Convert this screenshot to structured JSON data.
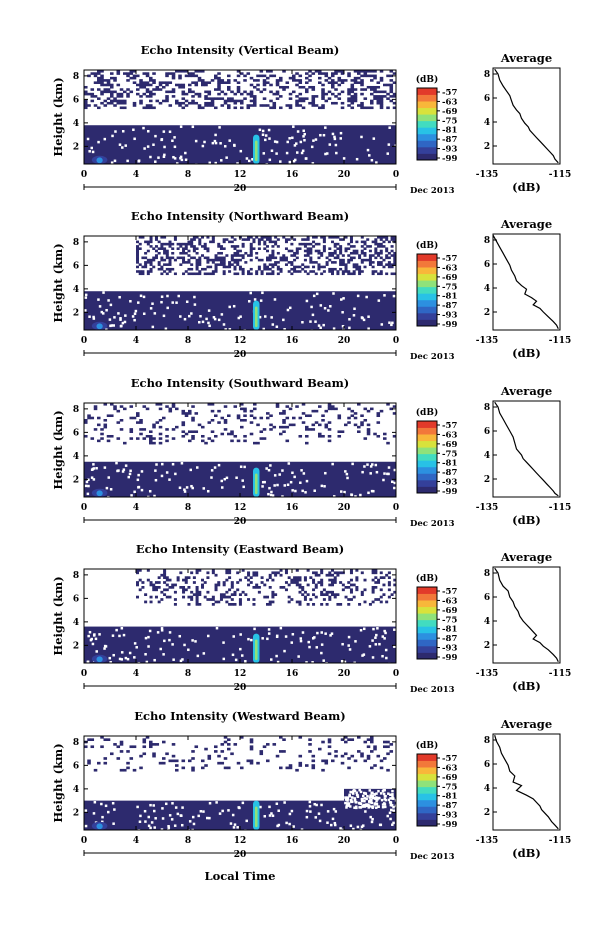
{
  "colors": {
    "background": "#ffffff",
    "echo_fill": "#3a3f8a",
    "colormap": [
      "#2d2a6e",
      "#34409a",
      "#2f66c4",
      "#2c90e0",
      "#28c2e6",
      "#42dcc0",
      "#8fe27a",
      "#d8e23c",
      "#f8b73a",
      "#f2783a",
      "#e23a2a"
    ]
  },
  "panels": [
    {
      "title": "Echo Intensity (Vertical Beam)",
      "ylabel": "Height (km)",
      "yticks": [
        "2",
        "4",
        "6",
        "8"
      ],
      "xticks": [
        "0",
        "4",
        "8",
        "12",
        "16",
        "20",
        "0"
      ],
      "day_label": "20",
      "date_label": "Dec 2013",
      "colorbar": {
        "unit": "(dB)",
        "ticks": [
          "-57",
          "-63",
          "-69",
          "-75",
          "-81",
          "-87",
          "-93",
          "-99"
        ]
      },
      "avg": {
        "title": "Average",
        "xlabel": "(dB)",
        "xticks": [
          "-135",
          "-115"
        ],
        "yticks": [
          "2",
          "4",
          "6",
          "8"
        ]
      }
    },
    {
      "title": "Echo Intensity (Northward Beam)",
      "ylabel": "Height (km)",
      "yticks": [
        "2",
        "4",
        "6",
        "8"
      ],
      "xticks": [
        "0",
        "4",
        "8",
        "12",
        "16",
        "20",
        "0"
      ],
      "day_label": "20",
      "date_label": "Dec 2013",
      "colorbar": {
        "unit": "(dB)",
        "ticks": [
          "-57",
          "-63",
          "-69",
          "-75",
          "-81",
          "-87",
          "-93",
          "-99"
        ]
      },
      "avg": {
        "title": "Average",
        "xlabel": "(dB)",
        "xticks": [
          "-135",
          "-115"
        ],
        "yticks": [
          "2",
          "4",
          "6",
          "8"
        ]
      }
    },
    {
      "title": "Echo Intensity (Southward Beam)",
      "ylabel": "Height (km)",
      "yticks": [
        "2",
        "4",
        "6",
        "8"
      ],
      "xticks": [
        "0",
        "4",
        "8",
        "12",
        "16",
        "20",
        "0"
      ],
      "day_label": "20",
      "date_label": "Dec 2013",
      "colorbar": {
        "unit": "(dB)",
        "ticks": [
          "-57",
          "-63",
          "-69",
          "-75",
          "-81",
          "-87",
          "-93",
          "-99"
        ]
      },
      "avg": {
        "title": "Average",
        "xlabel": "(dB)",
        "xticks": [
          "-135",
          "-115"
        ],
        "yticks": [
          "2",
          "4",
          "6",
          "8"
        ]
      }
    },
    {
      "title": "Echo Intensity (Eastward Beam)",
      "ylabel": "Height (km)",
      "yticks": [
        "2",
        "4",
        "6",
        "8"
      ],
      "xticks": [
        "0",
        "4",
        "8",
        "12",
        "16",
        "20",
        "0"
      ],
      "day_label": "20",
      "date_label": "Dec 2013",
      "colorbar": {
        "unit": "(dB)",
        "ticks": [
          "-57",
          "-63",
          "-69",
          "-75",
          "-81",
          "-87",
          "-93",
          "-99"
        ]
      },
      "avg": {
        "title": "Average",
        "xlabel": "(dB)",
        "xticks": [
          "-135",
          "-115"
        ],
        "yticks": [
          "2",
          "4",
          "6",
          "8"
        ]
      }
    },
    {
      "title": "Echo Intensity (Westward Beam)",
      "ylabel": "Height (km)",
      "yticks": [
        "2",
        "4",
        "6",
        "8"
      ],
      "xticks": [
        "0",
        "4",
        "8",
        "12",
        "16",
        "20",
        "0"
      ],
      "day_label": "20",
      "date_label": "Dec 2013",
      "colorbar": {
        "unit": "(dB)",
        "ticks": [
          "-57",
          "-63",
          "-69",
          "-75",
          "-81",
          "-87",
          "-93",
          "-99"
        ]
      },
      "avg": {
        "title": "Average",
        "xlabel": "(dB)",
        "xticks": [
          "-135",
          "-115"
        ],
        "yticks": [
          "2",
          "4",
          "6",
          "8"
        ]
      }
    }
  ],
  "bottom_xlabel": "Local Time",
  "chart_data": [
    {
      "type": "heatmap",
      "title": "Echo Intensity (Vertical Beam)",
      "xlabel": "Local Time",
      "ylabel": "Height (km)",
      "xlim": [
        0,
        24
      ],
      "ylim": [
        0.5,
        8.5
      ],
      "clim": [
        -99,
        -57
      ],
      "unit": "dB",
      "layers": [
        {
          "x0": 0,
          "x1": 24,
          "y0": 0.5,
          "y1": 3.8,
          "value": -97
        },
        {
          "x0": 0,
          "x1": 24,
          "y0": 5.2,
          "y1": 8.5,
          "value": -98,
          "coverage": 0.35
        },
        {
          "x0": 0.6,
          "x1": 1.8,
          "y0": 0.5,
          "y1": 1.2,
          "value": -88
        },
        {
          "x0": 13.0,
          "x1": 13.5,
          "y0": 0.5,
          "y1": 3.0,
          "value": -75
        }
      ]
    },
    {
      "type": "line",
      "title": "Average",
      "xlabel": "(dB)",
      "xlim": [
        -135,
        -115
      ],
      "ylim": [
        0.5,
        8.5
      ],
      "x": [
        -134.5,
        -133.5,
        -133,
        -132,
        -131,
        -130,
        -129.5,
        -129,
        -128,
        -127,
        -126.5,
        -125.5,
        -124.5,
        -124,
        -123,
        -122,
        -121,
        -120,
        -119,
        -118,
        -117,
        -116.5,
        -115.5
      ],
      "y": [
        8.4,
        8.0,
        7.5,
        7.0,
        6.6,
        6.2,
        5.8,
        5.4,
        5.0,
        4.7,
        4.3,
        3.9,
        3.6,
        3.3,
        3.0,
        2.7,
        2.4,
        2.1,
        1.8,
        1.5,
        1.2,
        0.9,
        0.6
      ]
    },
    {
      "type": "heatmap",
      "title": "Echo Intensity (Northward Beam)",
      "xlabel": "Local Time",
      "ylabel": "Height (km)",
      "xlim": [
        0,
        24
      ],
      "ylim": [
        0.5,
        8.5
      ],
      "clim": [
        -99,
        -57
      ],
      "unit": "dB",
      "layers": [
        {
          "x0": 0,
          "x1": 24,
          "y0": 0.5,
          "y1": 3.8,
          "value": -97
        },
        {
          "x0": 4,
          "x1": 24,
          "y0": 5.2,
          "y1": 8.5,
          "value": -98,
          "coverage": 0.4
        },
        {
          "x0": 0.6,
          "x1": 1.8,
          "y0": 0.5,
          "y1": 1.2,
          "value": -88
        },
        {
          "x0": 13.0,
          "x1": 13.5,
          "y0": 0.5,
          "y1": 3.0,
          "value": -75
        }
      ]
    },
    {
      "type": "line",
      "title": "Average",
      "xlabel": "(dB)",
      "xlim": [
        -135,
        -115
      ],
      "ylim": [
        0.5,
        8.5
      ],
      "x": [
        -135,
        -134,
        -133,
        -132,
        -131,
        -130,
        -129.5,
        -128.5,
        -128,
        -126.5,
        -125,
        -125.5,
        -123.5,
        -122,
        -123,
        -121,
        -120,
        -118.5,
        -117,
        -116,
        -115.5
      ],
      "y": [
        8.4,
        7.9,
        7.4,
        6.9,
        6.4,
        5.9,
        5.5,
        5.0,
        4.6,
        4.2,
        3.9,
        3.5,
        3.2,
        2.9,
        2.6,
        2.3,
        2.0,
        1.6,
        1.2,
        0.9,
        0.6
      ]
    },
    {
      "type": "heatmap",
      "title": "Echo Intensity (Southward Beam)",
      "xlabel": "Local Time",
      "ylabel": "Height (km)",
      "xlim": [
        0,
        24
      ],
      "ylim": [
        0.5,
        8.5
      ],
      "clim": [
        -99,
        -57
      ],
      "unit": "dB",
      "layers": [
        {
          "x0": 0,
          "x1": 24,
          "y0": 0.5,
          "y1": 3.5,
          "value": -97
        },
        {
          "x0": 0,
          "x1": 24,
          "y0": 5.0,
          "y1": 8.5,
          "value": -98,
          "coverage": 0.15
        },
        {
          "x0": 0.6,
          "x1": 1.8,
          "y0": 0.5,
          "y1": 1.2,
          "value": -88
        },
        {
          "x0": 13.0,
          "x1": 13.5,
          "y0": 0.5,
          "y1": 3.0,
          "value": -75
        }
      ]
    },
    {
      "type": "line",
      "title": "Average",
      "xlabel": "(dB)",
      "xlim": [
        -135,
        -115
      ],
      "ylim": [
        0.5,
        8.5
      ],
      "x": [
        -134.5,
        -133.5,
        -133,
        -132,
        -131,
        -130,
        -129,
        -128.5,
        -128,
        -126.5,
        -126,
        -125,
        -124,
        -123,
        -122,
        -121,
        -120,
        -119,
        -118,
        -117,
        -116.5,
        -115.5
      ],
      "y": [
        8.4,
        8.0,
        7.5,
        7.0,
        6.5,
        6.0,
        5.5,
        5.0,
        4.5,
        4.0,
        3.7,
        3.4,
        3.1,
        2.8,
        2.5,
        2.2,
        1.9,
        1.6,
        1.3,
        1.0,
        0.8,
        0.6
      ]
    },
    {
      "type": "heatmap",
      "title": "Echo Intensity (Eastward Beam)",
      "xlabel": "Local Time",
      "ylabel": "Height (km)",
      "xlim": [
        0,
        24
      ],
      "ylim": [
        0.5,
        8.5
      ],
      "clim": [
        -99,
        -57
      ],
      "unit": "dB",
      "layers": [
        {
          "x0": 0,
          "x1": 24,
          "y0": 0.5,
          "y1": 3.6,
          "value": -97
        },
        {
          "x0": 4,
          "x1": 24,
          "y0": 5.4,
          "y1": 8.5,
          "value": -98,
          "coverage": 0.25
        },
        {
          "x0": 0.6,
          "x1": 1.8,
          "y0": 0.5,
          "y1": 1.2,
          "value": -88
        },
        {
          "x0": 13.0,
          "x1": 13.5,
          "y0": 0.5,
          "y1": 3.0,
          "value": -75
        }
      ]
    },
    {
      "type": "line",
      "title": "Average",
      "xlabel": "(dB)",
      "xlim": [
        -135,
        -115
      ],
      "ylim": [
        0.5,
        8.5
      ],
      "x": [
        -134.5,
        -133.5,
        -133,
        -132,
        -130.5,
        -130,
        -129,
        -128.5,
        -127.5,
        -127,
        -126,
        -125,
        -124,
        -123,
        -122,
        -123,
        -121,
        -120,
        -118.5,
        -117,
        -116,
        -115.5
      ],
      "y": [
        8.4,
        8.0,
        7.4,
        6.9,
        6.5,
        6.0,
        5.6,
        5.2,
        4.8,
        4.4,
        4.0,
        3.7,
        3.4,
        3.1,
        2.8,
        2.5,
        2.2,
        1.9,
        1.6,
        1.2,
        0.9,
        0.6
      ]
    },
    {
      "type": "heatmap",
      "title": "Echo Intensity (Westward Beam)",
      "xlabel": "Local Time",
      "ylabel": "Height (km)",
      "xlim": [
        0,
        24
      ],
      "ylim": [
        0.5,
        8.5
      ],
      "clim": [
        -99,
        -57
      ],
      "unit": "dB",
      "layers": [
        {
          "x0": 0,
          "x1": 24,
          "y0": 0.5,
          "y1": 3.0,
          "value": -97
        },
        {
          "x0": 20,
          "x1": 24,
          "y0": 2.5,
          "y1": 4.0,
          "value": -97
        },
        {
          "x0": 0,
          "x1": 24,
          "y0": 5.5,
          "y1": 8.5,
          "value": -98,
          "coverage": 0.12
        },
        {
          "x0": 0.6,
          "x1": 1.8,
          "y0": 0.5,
          "y1": 1.2,
          "value": -88
        },
        {
          "x0": 13.0,
          "x1": 13.5,
          "y0": 0.5,
          "y1": 3.0,
          "value": -75
        }
      ]
    },
    {
      "type": "line",
      "title": "Average",
      "xlabel": "(dB)",
      "xlim": [
        -135,
        -115
      ],
      "ylim": [
        0.5,
        8.5
      ],
      "x": [
        -134.5,
        -134,
        -133,
        -132.5,
        -131.5,
        -130.5,
        -130,
        -128.5,
        -129,
        -126.5,
        -128,
        -125,
        -123,
        -122,
        -121,
        -120.5,
        -119.5,
        -118.5,
        -117.5,
        -116.5,
        -115.5
      ],
      "y": [
        8.4,
        7.9,
        7.4,
        6.9,
        6.4,
        5.9,
        5.4,
        5.0,
        4.5,
        4.2,
        3.8,
        3.4,
        3.1,
        2.8,
        2.5,
        2.2,
        1.9,
        1.6,
        1.2,
        0.9,
        0.6
      ]
    }
  ]
}
